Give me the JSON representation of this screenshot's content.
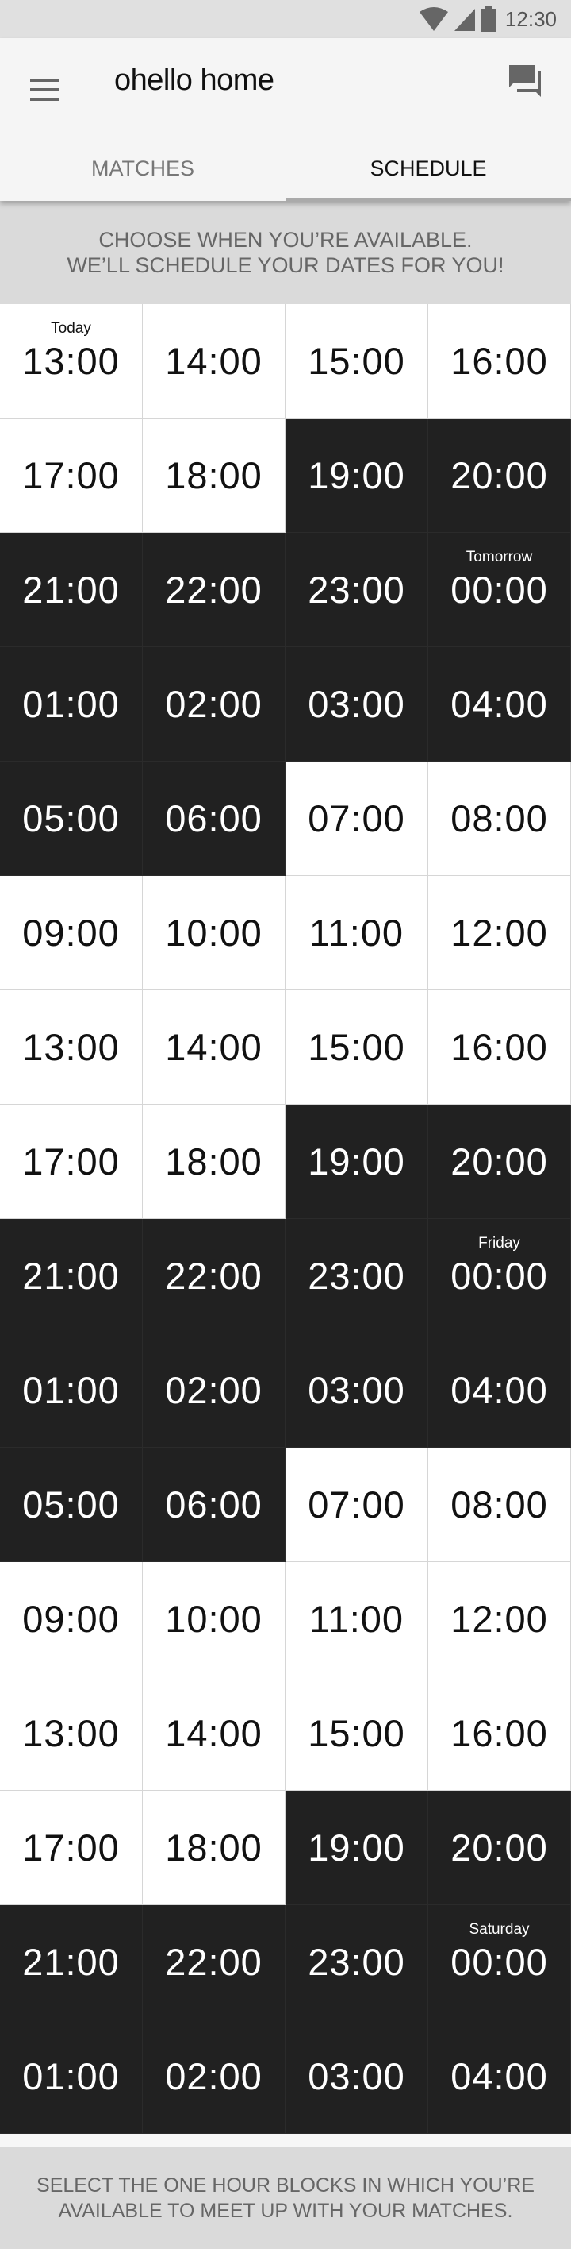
{
  "status_bar": {
    "time": "12:30",
    "icons": [
      "wifi-icon",
      "signal-icon",
      "battery-icon"
    ]
  },
  "app_bar": {
    "title": "ohello home",
    "menu_icon": "menu-icon",
    "action_icon": "chat-icon"
  },
  "tabs": [
    {
      "label": "MATCHES",
      "active": false
    },
    {
      "label": "SCHEDULE",
      "active": true
    }
  ],
  "banner": {
    "line1": "CHOOSE WHEN YOU’RE AVAILABLE.",
    "line2": "WE’LL SCHEDULE YOUR DATES FOR YOU!"
  },
  "colors": {
    "selected": "#212121",
    "unselected": "#ffffff",
    "banner": "#dadada"
  },
  "schedule": [
    {
      "time": "13:00",
      "day": "Today",
      "selected": false
    },
    {
      "time": "14:00",
      "selected": false
    },
    {
      "time": "15:00",
      "selected": false
    },
    {
      "time": "16:00",
      "selected": false
    },
    {
      "time": "17:00",
      "selected": false
    },
    {
      "time": "18:00",
      "selected": false
    },
    {
      "time": "19:00",
      "selected": true
    },
    {
      "time": "20:00",
      "selected": true
    },
    {
      "time": "21:00",
      "selected": true
    },
    {
      "time": "22:00",
      "selected": true
    },
    {
      "time": "23:00",
      "selected": true
    },
    {
      "time": "00:00",
      "day": "Tomorrow",
      "selected": true
    },
    {
      "time": "01:00",
      "selected": true
    },
    {
      "time": "02:00",
      "selected": true
    },
    {
      "time": "03:00",
      "selected": true
    },
    {
      "time": "04:00",
      "selected": true
    },
    {
      "time": "05:00",
      "selected": true
    },
    {
      "time": "06:00",
      "selected": true
    },
    {
      "time": "07:00",
      "selected": false
    },
    {
      "time": "08:00",
      "selected": false
    },
    {
      "time": "09:00",
      "selected": false
    },
    {
      "time": "10:00",
      "selected": false
    },
    {
      "time": "11:00",
      "selected": false
    },
    {
      "time": "12:00",
      "selected": false
    },
    {
      "time": "13:00",
      "selected": false
    },
    {
      "time": "14:00",
      "selected": false
    },
    {
      "time": "15:00",
      "selected": false
    },
    {
      "time": "16:00",
      "selected": false
    },
    {
      "time": "17:00",
      "selected": false
    },
    {
      "time": "18:00",
      "selected": false
    },
    {
      "time": "19:00",
      "selected": true
    },
    {
      "time": "20:00",
      "selected": true
    },
    {
      "time": "21:00",
      "selected": true
    },
    {
      "time": "22:00",
      "selected": true
    },
    {
      "time": "23:00",
      "selected": true
    },
    {
      "time": "00:00",
      "day": "Friday",
      "selected": true
    },
    {
      "time": "01:00",
      "selected": true
    },
    {
      "time": "02:00",
      "selected": true
    },
    {
      "time": "03:00",
      "selected": true
    },
    {
      "time": "04:00",
      "selected": true
    },
    {
      "time": "05:00",
      "selected": true
    },
    {
      "time": "06:00",
      "selected": true
    },
    {
      "time": "07:00",
      "selected": false
    },
    {
      "time": "08:00",
      "selected": false
    },
    {
      "time": "09:00",
      "selected": false
    },
    {
      "time": "10:00",
      "selected": false
    },
    {
      "time": "11:00",
      "selected": false
    },
    {
      "time": "12:00",
      "selected": false
    },
    {
      "time": "13:00",
      "selected": false
    },
    {
      "time": "14:00",
      "selected": false
    },
    {
      "time": "15:00",
      "selected": false
    },
    {
      "time": "16:00",
      "selected": false
    },
    {
      "time": "17:00",
      "selected": false
    },
    {
      "time": "18:00",
      "selected": false
    },
    {
      "time": "19:00",
      "selected": true
    },
    {
      "time": "20:00",
      "selected": true
    },
    {
      "time": "21:00",
      "selected": true
    },
    {
      "time": "22:00",
      "selected": true
    },
    {
      "time": "23:00",
      "selected": true
    },
    {
      "time": "00:00",
      "day": "Saturday",
      "selected": true
    },
    {
      "time": "01:00",
      "selected": true
    },
    {
      "time": "02:00",
      "selected": true
    },
    {
      "time": "03:00",
      "selected": true
    },
    {
      "time": "04:00",
      "selected": true
    }
  ],
  "footer": {
    "line1": "SELECT THE ONE HOUR BLOCKS IN WHICH YOU’RE",
    "line2": "AVAILABLE TO MEET UP WITH YOUR MATCHES."
  }
}
